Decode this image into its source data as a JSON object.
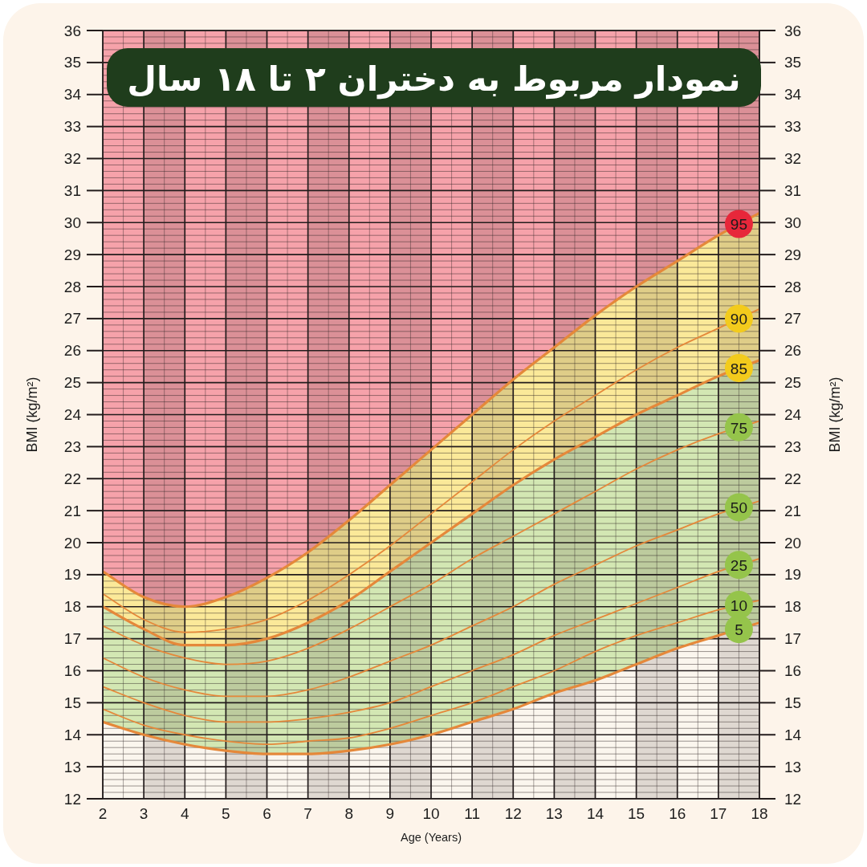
{
  "chart_data": {
    "type": "line",
    "title": "نمودار مربوط به دختران ۲ تا ۱۸ سال",
    "xlabel": "Age (Years)",
    "ylabel": "BMI (kg/m²)",
    "y2label": "BMI (kg/m²)",
    "x": [
      2,
      3,
      4,
      5,
      6,
      7,
      8,
      9,
      10,
      11,
      12,
      13,
      14,
      15,
      16,
      17,
      18
    ],
    "xlim": [
      2,
      18
    ],
    "xticks": [
      2,
      3,
      4,
      5,
      6,
      7,
      8,
      9,
      10,
      11,
      12,
      13,
      14,
      15,
      16,
      17,
      18
    ],
    "ylim": [
      12,
      36
    ],
    "yticks": [
      12,
      13,
      14,
      15,
      16,
      17,
      18,
      19,
      20,
      21,
      22,
      23,
      24,
      25,
      26,
      27,
      28,
      29,
      30,
      31,
      32,
      33,
      34,
      35,
      36
    ],
    "y2lim": [
      12,
      36
    ],
    "y2ticks": [
      12,
      13,
      14,
      15,
      16,
      17,
      18,
      19,
      20,
      21,
      22,
      23,
      24,
      25,
      26,
      27,
      28,
      29,
      30,
      31,
      32,
      33,
      34,
      35,
      36
    ],
    "grid": true,
    "bands": [
      {
        "axis": "y",
        "from": 12,
        "to": 36,
        "color": "#f6a2aa"
      },
      {
        "axis": "x",
        "from": 3,
        "to": 4,
        "color": "#3c2222"
      },
      {
        "axis": "x",
        "from": 5,
        "to": 6,
        "color": "#3c2222"
      },
      {
        "axis": "x",
        "from": 7,
        "to": 8,
        "color": "#3c2222"
      },
      {
        "axis": "x",
        "from": 9,
        "to": 10,
        "color": "#3c2222"
      },
      {
        "axis": "x",
        "from": 11,
        "to": 12,
        "color": "#3c2222"
      },
      {
        "axis": "x",
        "from": 13,
        "to": 14,
        "color": "#3c2222"
      },
      {
        "axis": "x",
        "from": 15,
        "to": 16,
        "color": "#3c2222"
      },
      {
        "axis": "x",
        "from": 17,
        "to": 18,
        "color": "#3c2222"
      }
    ],
    "series": [
      {
        "name": "95",
        "type": "area",
        "color": "#fbe999",
        "values": [
          19.1,
          18.3,
          18.0,
          18.3,
          18.9,
          19.7,
          20.7,
          21.8,
          22.9,
          24.0,
          25.1,
          26.1,
          27.1,
          28.0,
          28.8,
          29.6,
          30.3
        ]
      },
      {
        "name": "90",
        "type": "line",
        "color": "#e5883a",
        "values": [
          18.4,
          17.6,
          17.2,
          17.3,
          17.6,
          18.2,
          19.0,
          19.9,
          20.9,
          21.9,
          22.9,
          23.8,
          24.6,
          25.4,
          26.1,
          26.7,
          27.3
        ]
      },
      {
        "name": "85",
        "type": "area",
        "color": "#d3e7b3",
        "values": [
          18.0,
          17.3,
          16.8,
          16.8,
          17.0,
          17.5,
          18.2,
          19.1,
          20.0,
          20.9,
          21.8,
          22.6,
          23.3,
          24.0,
          24.6,
          25.2,
          25.7
        ]
      },
      {
        "name": "75",
        "type": "line",
        "color": "#e5883a",
        "values": [
          17.4,
          16.8,
          16.4,
          16.2,
          16.3,
          16.7,
          17.3,
          18.0,
          18.7,
          19.5,
          20.2,
          20.9,
          21.6,
          22.3,
          22.9,
          23.4,
          23.8
        ]
      },
      {
        "name": "50",
        "type": "line",
        "color": "#e5883a",
        "values": [
          16.4,
          15.8,
          15.4,
          15.2,
          15.2,
          15.4,
          15.8,
          16.3,
          16.8,
          17.4,
          18.0,
          18.7,
          19.3,
          19.9,
          20.4,
          20.9,
          21.3
        ]
      },
      {
        "name": "25",
        "type": "line",
        "color": "#e5883a",
        "values": [
          15.5,
          15.0,
          14.6,
          14.4,
          14.4,
          14.5,
          14.7,
          15.0,
          15.5,
          16.0,
          16.5,
          17.1,
          17.6,
          18.1,
          18.6,
          19.1,
          19.5
        ]
      },
      {
        "name": "10",
        "type": "line",
        "color": "#e5883a",
        "values": [
          14.8,
          14.3,
          14.0,
          13.8,
          13.7,
          13.8,
          13.9,
          14.2,
          14.6,
          15.0,
          15.5,
          16.0,
          16.6,
          17.1,
          17.5,
          17.9,
          18.2
        ]
      },
      {
        "name": "5",
        "type": "area",
        "color": "#fbf6ee",
        "values": [
          14.4,
          14.0,
          13.7,
          13.5,
          13.4,
          13.4,
          13.5,
          13.7,
          14.0,
          14.4,
          14.8,
          15.3,
          15.7,
          16.2,
          16.7,
          17.1,
          17.5
        ]
      }
    ]
  }
}
